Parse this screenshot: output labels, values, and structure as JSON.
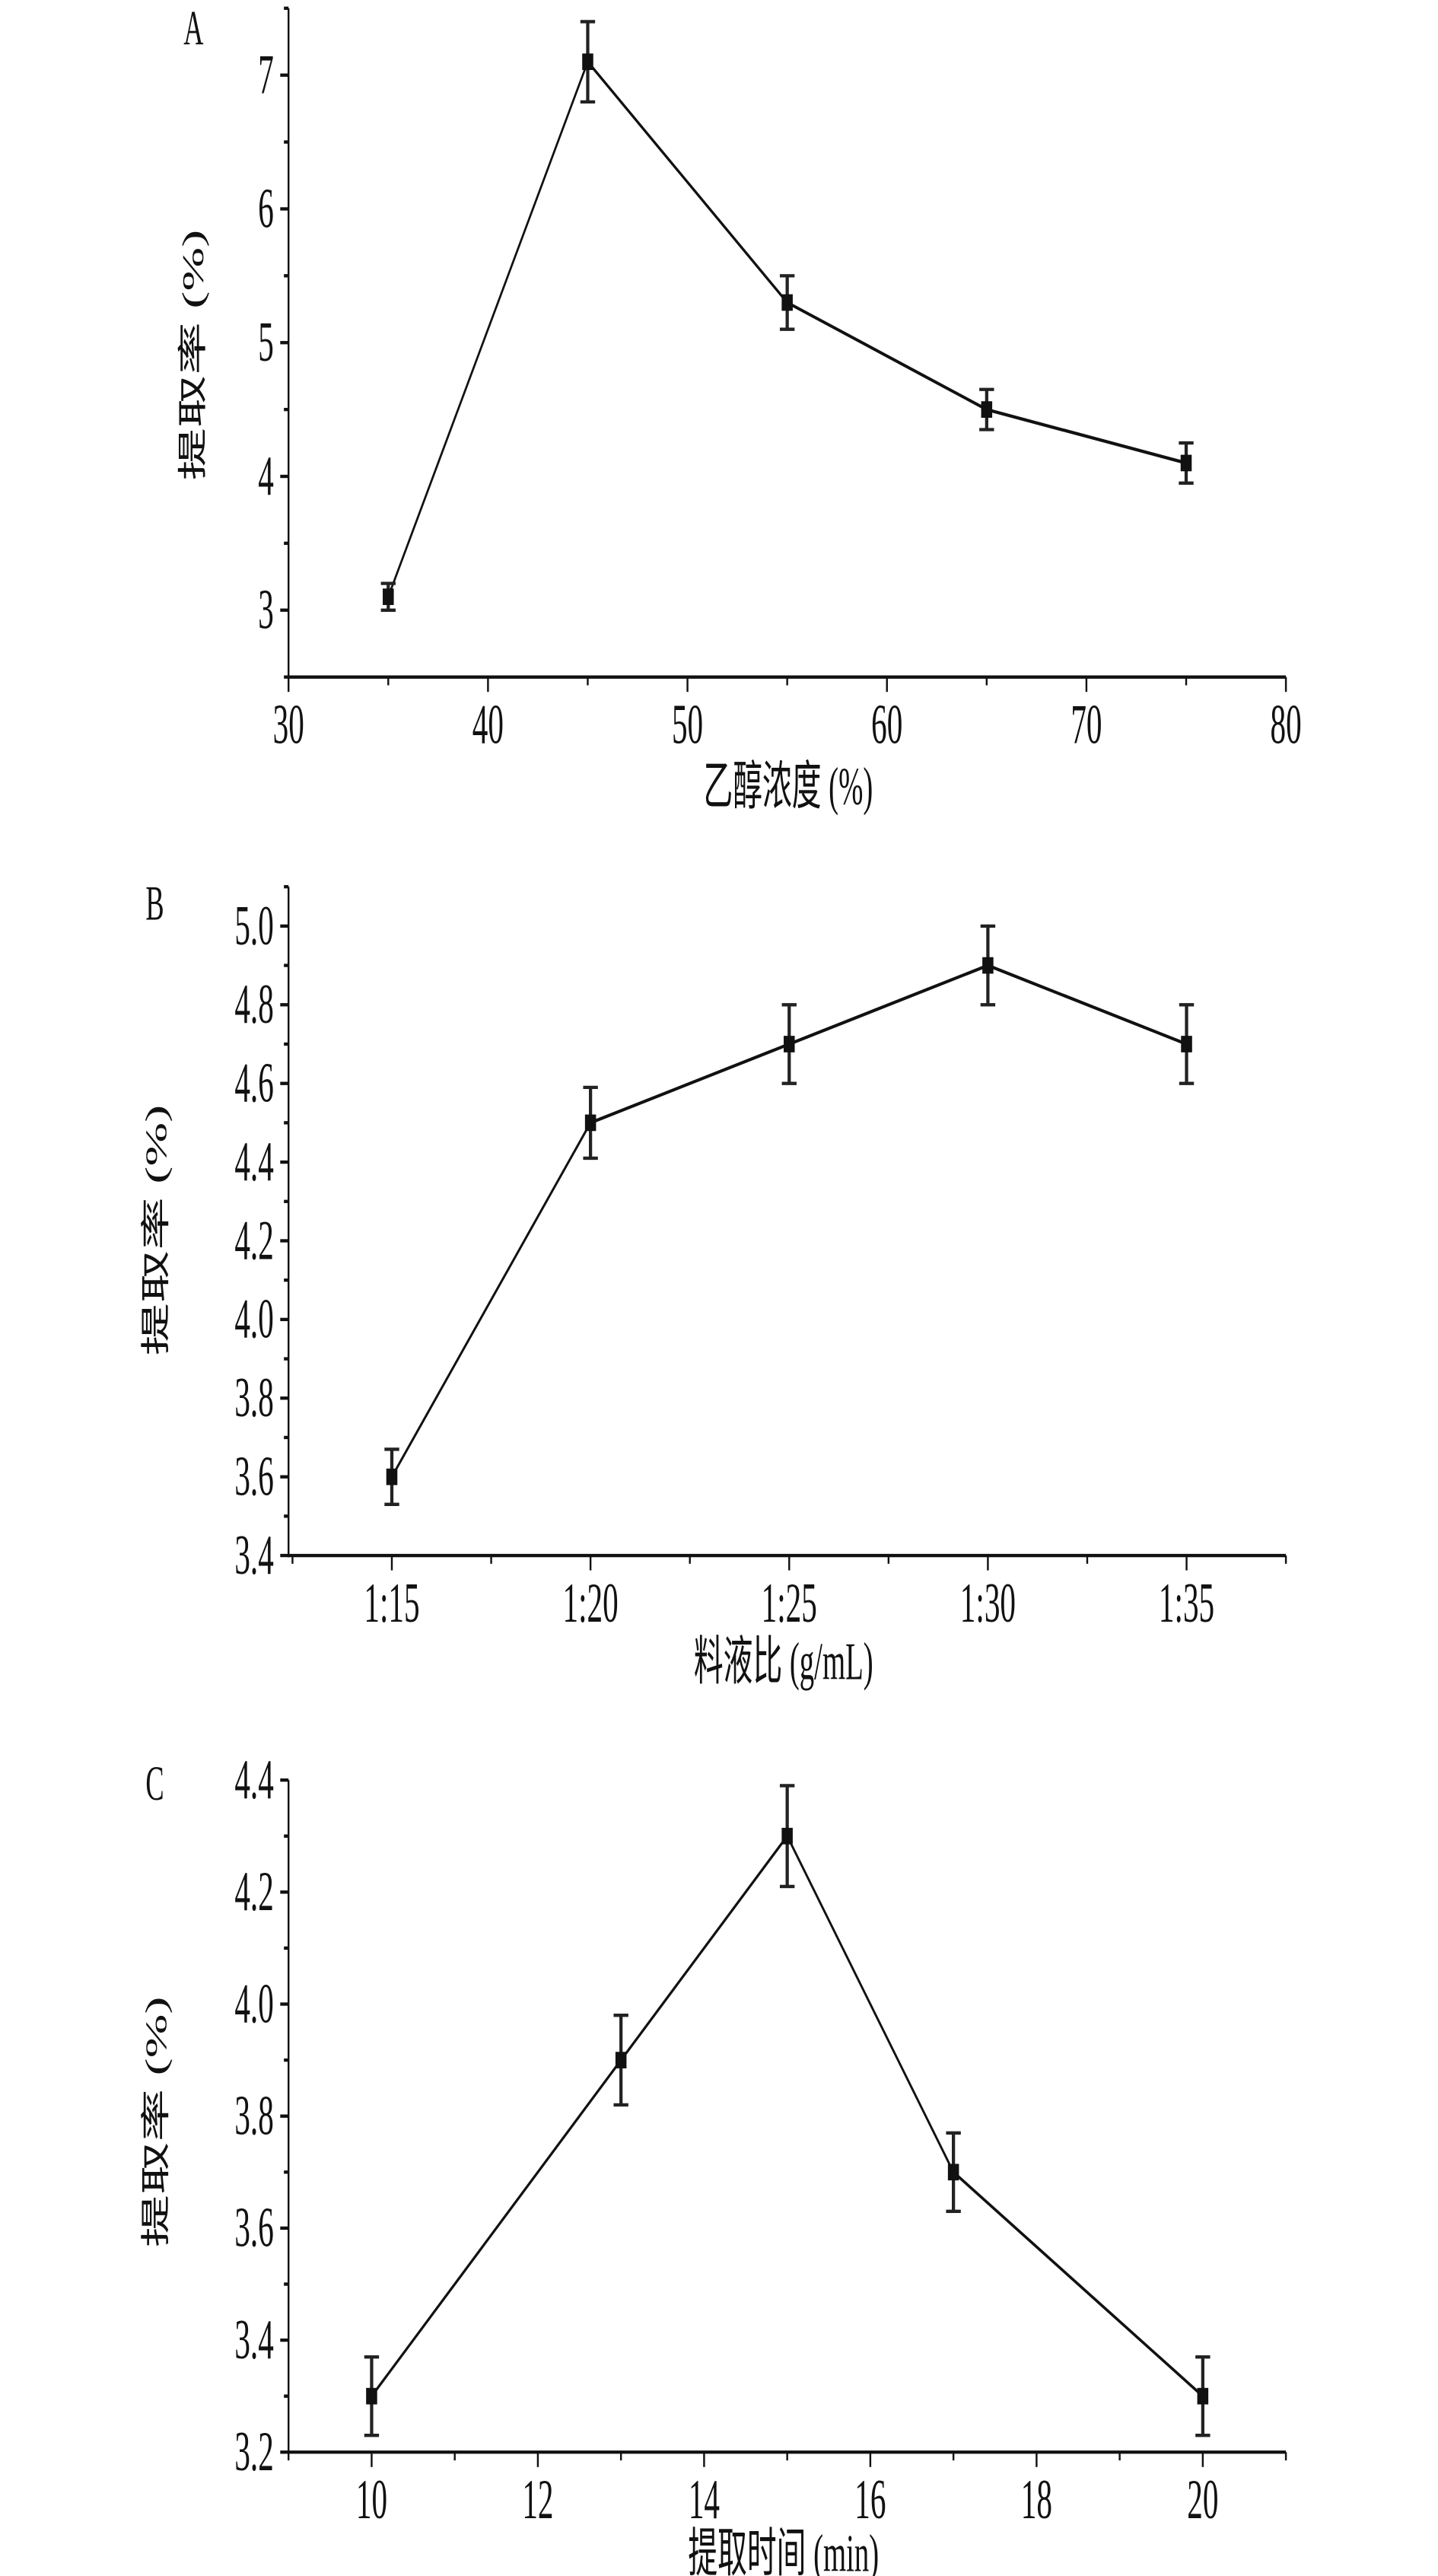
{
  "chart_data": [
    {
      "type": "line",
      "panel": "A",
      "xlabel": "乙醇浓度 (%)",
      "ylabel": "提取率 (%)",
      "x": [
        35,
        45,
        55,
        65,
        75
      ],
      "values": [
        3.1,
        7.1,
        5.3,
        4.5,
        4.1
      ],
      "errors": [
        0.1,
        0.3,
        0.2,
        0.15,
        0.15
      ],
      "xlim": [
        30,
        80
      ],
      "ylim": [
        2.5,
        7.5
      ],
      "xticks": [
        30,
        40,
        50,
        60,
        70,
        80
      ],
      "xtick_labels": [
        "30",
        "40",
        "50",
        "60",
        "70",
        "80"
      ],
      "xminor": 5,
      "yticks": [
        3,
        4,
        5,
        6,
        7
      ],
      "ytick_labels": [
        "3",
        "4",
        "5",
        "6",
        "7"
      ],
      "yminor": 0.5,
      "grid": false
    },
    {
      "type": "line",
      "panel": "B",
      "xlabel": "料液比 (g/mL)",
      "ylabel": "提取率 (%)",
      "categories": [
        "1:15",
        "1:20",
        "1:25",
        "1:30",
        "1:35"
      ],
      "x": [
        1,
        2,
        3,
        4,
        5
      ],
      "values": [
        3.6,
        4.5,
        4.7,
        4.9,
        4.7
      ],
      "errors": [
        0.07,
        0.09,
        0.1,
        0.1,
        0.1
      ],
      "xlim": [
        0.48,
        5.5
      ],
      "ylim": [
        3.4,
        5.1
      ],
      "xticks": [
        1,
        2,
        3,
        4,
        5
      ],
      "xtick_labels": [
        "1:15",
        "1:20",
        "1:25",
        "1:30",
        "1:35"
      ],
      "xminor": 0.5,
      "yticks": [
        3.4,
        3.6,
        3.8,
        4.0,
        4.2,
        4.4,
        4.6,
        4.8,
        5.0
      ],
      "ytick_labels": [
        "3.4",
        "3.6",
        "3.8",
        "4.0",
        "4.2",
        "4.4",
        "4.6",
        "4.8",
        "5.0"
      ],
      "yminor": 0.1,
      "grid": false
    },
    {
      "type": "line",
      "panel": "C",
      "xlabel": "提取时间 (min)",
      "ylabel": "提取率 (%)",
      "x": [
        10,
        13,
        15,
        17,
        20
      ],
      "values": [
        3.3,
        3.9,
        4.3,
        3.7,
        3.3
      ],
      "errors": [
        0.07,
        0.08,
        0.09,
        0.07,
        0.07
      ],
      "xlim": [
        9,
        21
      ],
      "ylim": [
        3.2,
        4.4
      ],
      "xticks": [
        10,
        12,
        14,
        16,
        18,
        20
      ],
      "xtick_labels": [
        "10",
        "12",
        "14",
        "16",
        "18",
        "20"
      ],
      "xminor": 1,
      "yticks": [
        3.2,
        3.4,
        3.6,
        3.8,
        4.0,
        4.2,
        4.4
      ],
      "ytick_labels": [
        "3.2",
        "3.4",
        "3.6",
        "3.8",
        "4.0",
        "4.2",
        "4.4"
      ],
      "yminor": 0.1,
      "grid": false
    }
  ]
}
